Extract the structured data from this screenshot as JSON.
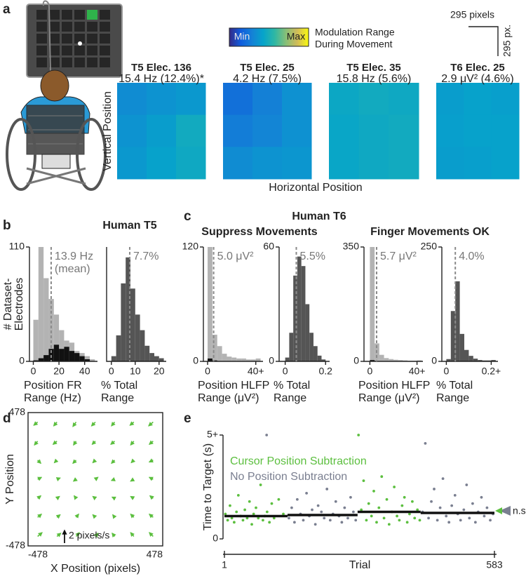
{
  "panels": [
    "a",
    "b",
    "c",
    "d",
    "e"
  ],
  "colorbar": {
    "title": [
      "Modulation Range",
      "During Movement"
    ],
    "ticks": [
      {
        "value": 0,
        "label": "Min"
      },
      {
        "value": 1,
        "label": "Max"
      }
    ],
    "colormap": [
      "#352a87",
      "#0f5cdd",
      "#1481d6",
      "#06a4ca",
      "#2eb7a4",
      "#87bf77",
      "#d1bb59",
      "#f9fb0e"
    ]
  },
  "scale_bar": {
    "horizontal": "295 pixels",
    "vertical": "295 px."
  },
  "heatmap_axes": {
    "ylabel": "Vertical Position",
    "xlabel": "Horizontal Position"
  },
  "group_titles": {
    "b": "Human T5",
    "c": "Human T6",
    "c_left": "Suppress Movements",
    "c_right": "Finger Movements OK"
  },
  "chart_data": [
    {
      "type": "heatmap",
      "title": "T5 Elec. 136",
      "subtitle": "15.4 Hz (12.4%)*",
      "values": [
        [
          0.33,
          0.36,
          0.38
        ],
        [
          0.36,
          0.4,
          0.47
        ],
        [
          0.38,
          0.42,
          0.46
        ]
      ]
    },
    {
      "type": "heatmap",
      "title": "T5 Elec. 25",
      "subtitle": "4.2 Hz (7.5%)",
      "values": [
        [
          0.22,
          0.28,
          0.35
        ],
        [
          0.27,
          0.3,
          0.35
        ],
        [
          0.33,
          0.36,
          0.37
        ]
      ]
    },
    {
      "type": "heatmap",
      "title": "T5 Elec. 35",
      "subtitle": "15.8 Hz (5.6%)",
      "values": [
        [
          0.45,
          0.47,
          0.46
        ],
        [
          0.44,
          0.46,
          0.47
        ],
        [
          0.44,
          0.46,
          0.47
        ]
      ]
    },
    {
      "type": "heatmap",
      "title": "T6 Elec. 25",
      "subtitle": "2.9 μV² (4.6%)",
      "values": [
        [
          0.4,
          0.42,
          0.41
        ],
        [
          0.41,
          0.42,
          0.42
        ],
        [
          0.4,
          0.41,
          0.42
        ]
      ]
    },
    {
      "type": "histogram",
      "ylabel": [
        "# Dataset-",
        "Electrodes"
      ],
      "xlabel": [
        "Position FR",
        "Range (Hz)"
      ],
      "bins": [
        0,
        4,
        8,
        12,
        16,
        20,
        24,
        28,
        32,
        36,
        40,
        44,
        48
      ],
      "series": [
        {
          "color": "#b3b3b3",
          "values": [
            40,
            110,
            80,
            60,
            45,
            30,
            20,
            18,
            10,
            8,
            5,
            2
          ]
        },
        {
          "color": "#111111",
          "values": [
            1,
            3,
            6,
            12,
            16,
            12,
            14,
            10,
            8,
            5,
            2,
            0
          ]
        }
      ],
      "xlim": [
        -3,
        50
      ],
      "ylim": [
        0,
        110
      ],
      "xticks": [
        0,
        20,
        40
      ],
      "yticks": [
        0,
        110
      ],
      "mean": 13.9,
      "mean_label": [
        "13.9 Hz",
        "(mean)"
      ]
    },
    {
      "type": "histogram",
      "xlabel": [
        "% Total",
        "Range"
      ],
      "bins": [
        0,
        2,
        4,
        6,
        8,
        10,
        12,
        14,
        16,
        18,
        20,
        22
      ],
      "series": [
        {
          "color": "#555555",
          "values": [
            5,
            25,
            75,
            100,
            70,
            45,
            30,
            15,
            8,
            5,
            3
          ]
        }
      ],
      "xlim": [
        -2,
        23
      ],
      "ylim": [
        0,
        110
      ],
      "xticks": [
        0,
        10,
        20
      ],
      "yticks": [],
      "mean": 7.7,
      "mean_label": [
        "7.7%"
      ]
    },
    {
      "type": "histogram",
      "xlabel": [
        "Position HLFP",
        "Range (μV²)"
      ],
      "bins": [
        0,
        4,
        8,
        12,
        16,
        20,
        24,
        28,
        32,
        36,
        40,
        44
      ],
      "series": [
        {
          "color": "#b3b3b3",
          "values": [
            120,
            28,
            16,
            8,
            5,
            4,
            3,
            3,
            2,
            2,
            3
          ]
        },
        {
          "color": "#111111",
          "values": [
            3,
            1,
            0,
            0,
            0,
            0,
            0,
            0,
            0,
            0,
            0
          ]
        }
      ],
      "xlim": [
        -3.5,
        46
      ],
      "ylim": [
        0,
        120
      ],
      "xticks": [
        0,
        {
          "value": 40,
          "label": "40+"
        }
      ],
      "yticks": [
        0,
        120
      ],
      "mean": 5.0,
      "mean_label": [
        "5.0 μV²"
      ]
    },
    {
      "type": "histogram",
      "xlabel": [
        "% Total",
        "Range"
      ],
      "bins": [
        0,
        0.02,
        0.04,
        0.06,
        0.08,
        0.1,
        0.12,
        0.14,
        0.16,
        0.18,
        0.2
      ],
      "series": [
        {
          "color": "#555555",
          "values": [
            2,
            15,
            45,
            55,
            50,
            30,
            15,
            8,
            3,
            1
          ]
        }
      ],
      "xlim": [
        -0.03,
        0.22
      ],
      "ylim": [
        0,
        60
      ],
      "xticks": [
        0,
        0.2
      ],
      "yticks": [
        0,
        60
      ],
      "mean": 0.055,
      "mean_label": [
        "5.5%"
      ]
    },
    {
      "type": "histogram",
      "xlabel": [
        "Position HLFP",
        "Range (μV²)"
      ],
      "bins": [
        0,
        4,
        8,
        12,
        16,
        20,
        24,
        28,
        32,
        36,
        40,
        44
      ],
      "series": [
        {
          "color": "#b3b3b3",
          "values": [
            350,
            55,
            20,
            10,
            7,
            5,
            4,
            3,
            2,
            2,
            3
          ]
        },
        {
          "color": "#111111",
          "values": [
            4,
            1,
            0,
            0,
            0,
            0,
            0,
            0,
            0,
            0,
            0
          ]
        }
      ],
      "xlim": [
        -5,
        45
      ],
      "ylim": [
        0,
        350
      ],
      "xticks": [
        0,
        {
          "value": 40,
          "label": "40+"
        }
      ],
      "yticks": [
        0,
        350
      ],
      "mean": 5.7,
      "mean_label": [
        "5.7 μV²"
      ]
    },
    {
      "type": "histogram",
      "xlabel": [
        "% Total",
        "Range"
      ],
      "bins": [
        0,
        0.02,
        0.04,
        0.06,
        0.08,
        0.1,
        0.12,
        0.14,
        0.16,
        0.18,
        0.2,
        0.22
      ],
      "series": [
        {
          "color": "#555555",
          "values": [
            5,
            110,
            175,
            60,
            25,
            12,
            6,
            3,
            2,
            2,
            3
          ]
        }
      ],
      "xlim": [
        -0.02,
        0.23
      ],
      "ylim": [
        0,
        250
      ],
      "xticks": [
        0,
        {
          "value": 0.2,
          "label": "0.2+"
        }
      ],
      "yticks": [
        0,
        250
      ],
      "mean": 0.04,
      "mean_label": [
        "4.0%"
      ]
    },
    {
      "type": "quiver",
      "xlabel": "X Position (pixels)",
      "ylabel": "Y Position",
      "color": "#5cbf3f",
      "xlim": [
        -478,
        478
      ],
      "ylim": [
        -478,
        478
      ],
      "xticks": [
        -478,
        478
      ],
      "yticks": [
        -478,
        478
      ],
      "x": [
        -410,
        -273,
        -137,
        0,
        137,
        273,
        410
      ],
      "y": [
        410,
        273,
        137,
        0,
        -137,
        -273,
        -410
      ],
      "u": [
        [
          -0.6,
          -0.5,
          -0.5,
          -0.6,
          -0.5,
          -0.6,
          -0.7
        ],
        [
          -0.5,
          -0.6,
          -0.4,
          -0.5,
          -0.6,
          -0.5,
          -0.6
        ],
        [
          0.5,
          -0.4,
          -0.5,
          -0.4,
          -0.5,
          -0.4,
          -0.6
        ],
        [
          0.6,
          0.5,
          -0.4,
          0.4,
          -0.5,
          -0.5,
          -0.6
        ],
        [
          0.5,
          0.4,
          -0.3,
          -0.4,
          -0.4,
          -0.5,
          -0.5
        ],
        [
          0.6,
          0.5,
          0.4,
          -0.4,
          -0.3,
          -0.5,
          -0.6
        ],
        [
          0.7,
          0.6,
          0.5,
          0.4,
          -0.4,
          -0.5,
          -0.6
        ]
      ],
      "v": [
        [
          -0.5,
          -0.6,
          -0.7,
          -0.6,
          -0.6,
          -0.5,
          -0.6
        ],
        [
          -0.6,
          -0.5,
          -0.6,
          -0.5,
          -0.5,
          -0.6,
          -0.5
        ],
        [
          -0.5,
          -0.4,
          -0.5,
          -0.4,
          -0.5,
          -0.4,
          -0.3
        ],
        [
          0.3,
          0.2,
          -0.3,
          0.3,
          -0.2,
          -0.3,
          0.3
        ],
        [
          0.4,
          0.3,
          0.4,
          0.3,
          0.2,
          0.3,
          0.4
        ],
        [
          0.5,
          0.4,
          0.5,
          0.4,
          0.4,
          0.5,
          0.5
        ],
        [
          0.6,
          0.5,
          0.6,
          0.5,
          0.5,
          0.6,
          0.6
        ]
      ],
      "scale_arrow": {
        "value": 2,
        "label": "2 pixels/s"
      }
    },
    {
      "type": "scatter",
      "xlabel": "Trial",
      "ylabel": "Time to Target (s)",
      "annotation": "n.s.",
      "xlim": [
        1,
        583
      ],
      "ylim": [
        0,
        5
      ],
      "xticks": [
        1,
        583
      ],
      "yticks": [
        0,
        {
          "value": 5,
          "label": "5+"
        }
      ],
      "series": [
        {
          "name": "Cursor Position Subtraction",
          "color": "#5cbf3f",
          "x": [
            3,
            8,
            13,
            17,
            22,
            27,
            31,
            36,
            41,
            45,
            50,
            55,
            60,
            64,
            69,
            74,
            79,
            84,
            88,
            93,
            98,
            103,
            108,
            118,
            128,
            290,
            296,
            301,
            307,
            312,
            318,
            323,
            329,
            334,
            340,
            345,
            351,
            356,
            362,
            367,
            373,
            378,
            384,
            389,
            395,
            400,
            406,
            411,
            417,
            422
          ],
          "values": [
            1.2,
            0.9,
            1.6,
            1.0,
            0.8,
            1.3,
            2.1,
            1.1,
            0.9,
            1.4,
            1.0,
            1.8,
            0.7,
            1.2,
            1.5,
            1.0,
            2.6,
            0.9,
            1.1,
            1.3,
            0.8,
            1.7,
            1.0,
            1.9,
            1.2,
            5,
            1.4,
            2.8,
            0.9,
            1.7,
            1.1,
            2.3,
            0.8,
            1.5,
            3.0,
            1.0,
            1.9,
            0.7,
            1.3,
            2.5,
            1.1,
            0.9,
            1.6,
            2.0,
            0.8,
            1.2,
            1.8,
            1.0,
            1.4,
            0.9
          ],
          "blocks": [
            [
              1,
              137
            ],
            [
              288,
              424
            ]
          ],
          "means": [
            1.1,
            1.3
          ]
        },
        {
          "name": "No Position Subtraction",
          "color": "#7a7f90",
          "x": [
            92,
            140,
            146,
            152,
            158,
            165,
            171,
            178,
            184,
            190,
            197,
            203,
            210,
            216,
            222,
            229,
            235,
            241,
            248,
            254,
            260,
            267,
            273,
            279,
            284,
            428,
            434,
            441,
            447,
            453,
            460,
            466,
            472,
            479,
            485,
            491,
            498,
            504,
            510,
            517,
            523,
            529,
            536,
            542,
            548,
            555,
            561,
            567,
            574,
            580
          ],
          "values": [
            5,
            1.0,
            1.5,
            0.8,
            1.9,
            1.2,
            0.9,
            2.2,
            1.1,
            1.4,
            0.7,
            1.6,
            1.3,
            1.0,
            2.4,
            0.9,
            1.2,
            1.8,
            1.1,
            0.8,
            1.5,
            1.0,
            2.0,
            1.3,
            0.9,
            1.3,
            4.6,
            1.0,
            1.8,
            2.4,
            0.9,
            1.5,
            2.9,
            1.1,
            0.8,
            1.6,
            2.1,
            1.2,
            0.9,
            1.4,
            2.6,
            1.0,
            1.7,
            0.8,
            1.3,
            2.0,
            1.1,
            1.5,
            0.9,
            1.2
          ],
          "blocks": [
            [
              137,
              288
            ],
            [
              424,
              583
            ]
          ],
          "means": [
            1.15,
            1.25
          ]
        }
      ]
    }
  ]
}
